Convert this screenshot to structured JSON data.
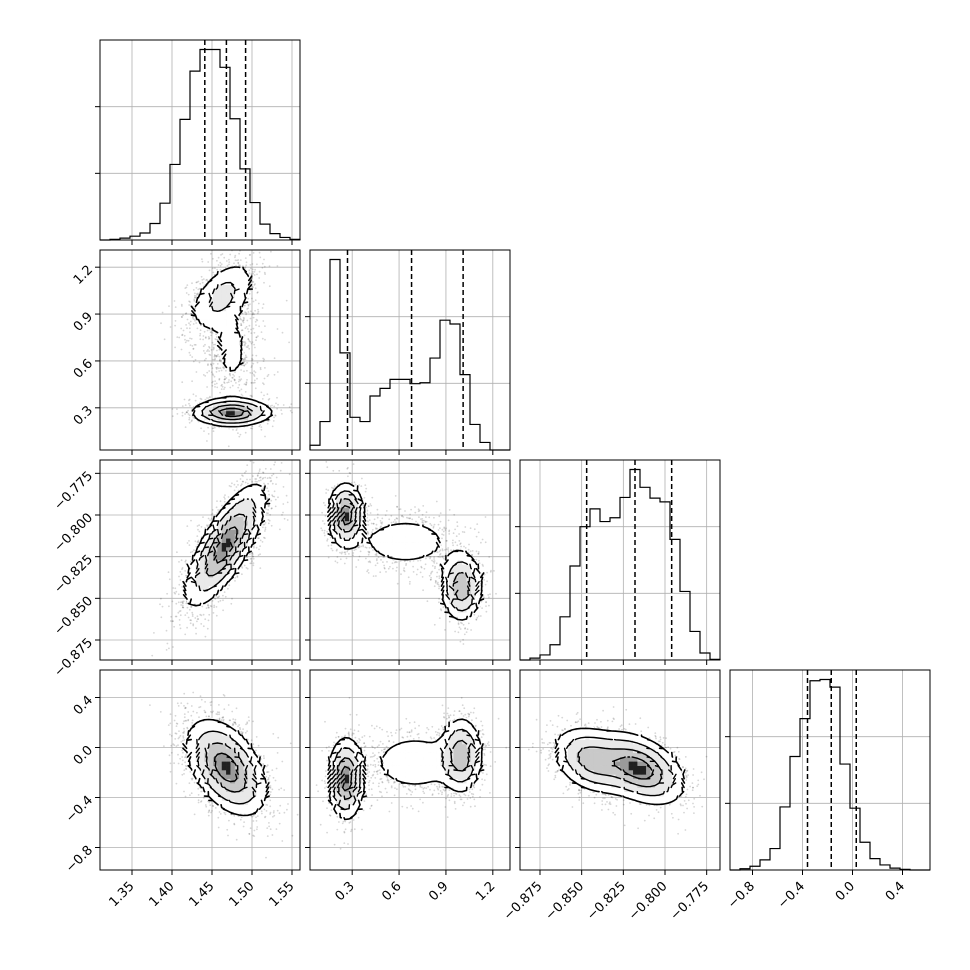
{
  "chart_data": {
    "type": "corner",
    "grid": true,
    "params": [
      {
        "id": "p0",
        "range": [
          1.31,
          1.56
        ],
        "ticks": [
          "1.35",
          "1.40",
          "1.45",
          "1.50",
          "1.55"
        ],
        "tick_values": [
          1.35,
          1.4,
          1.45,
          1.5,
          1.55
        ],
        "quantiles": [
          1.441,
          1.468,
          1.492
        ]
      },
      {
        "id": "p1",
        "range": [
          0.03,
          1.31
        ],
        "ticks": [
          "0.3",
          "0.6",
          "0.9",
          "1.2"
        ],
        "tick_values": [
          0.3,
          0.6,
          0.9,
          1.2
        ],
        "quantiles": [
          0.27,
          0.68,
          1.01
        ]
      },
      {
        "id": "p2",
        "range": [
          -0.887,
          -0.767
        ],
        "ticks": [
          "-0.875",
          "-0.850",
          "-0.825",
          "-0.800",
          "-0.775"
        ],
        "tick_labels": [
          "−0.875",
          "−0.850",
          "−0.825",
          "−0.800",
          "−0.775"
        ],
        "tick_values": [
          -0.875,
          -0.85,
          -0.825,
          -0.8,
          -0.775
        ],
        "quantiles": [
          -0.847,
          -0.818,
          -0.796
        ]
      },
      {
        "id": "p3",
        "range": [
          -0.98,
          0.62
        ],
        "ticks": [
          "-0.8",
          "-0.4",
          "0.0",
          "0.4"
        ],
        "tick_labels": [
          "−0.8",
          "−0.4",
          "0.0",
          "0.4"
        ],
        "tick_values": [
          -0.8,
          -0.4,
          0.0,
          0.4
        ],
        "quantiles": [
          -0.36,
          -0.17,
          0.03
        ]
      }
    ],
    "histograms": [
      {
        "param": "p0",
        "counts": [
          0,
          1,
          3,
          6,
          11,
          26,
          58,
          119,
          190,
          266,
          300,
          300,
          272,
          191,
          112,
          59,
          25,
          10,
          4,
          1
        ]
      },
      {
        "param": "p1",
        "counts": [
          10,
          60,
          402,
          205,
          69,
          60,
          114,
          130,
          149,
          149,
          140,
          142,
          194,
          274,
          266,
          159,
          54,
          16,
          0,
          0
        ]
      },
      {
        "param": "p2",
        "counts": [
          0,
          3,
          8,
          24,
          68,
          148,
          210,
          238,
          218,
          224,
          256,
          300,
          272,
          255,
          249,
          190,
          108,
          45,
          11,
          1
        ]
      },
      {
        "param": "p3",
        "counts": [
          0,
          2,
          6,
          16,
          34,
          100,
          180,
          240,
          300,
          302,
          290,
          168,
          98,
          44,
          18,
          8,
          3,
          1,
          0,
          0
        ]
      }
    ],
    "pairs": [
      {
        "x": "p0",
        "y": "p1",
        "modes": [
          {
            "cx": 1.462,
            "cy": 1.02,
            "sx": 0.024,
            "sy": 0.13,
            "rho": 0.55,
            "w": 0.34
          },
          {
            "cx": 1.475,
            "cy": 0.67,
            "sx": 0.02,
            "sy": 0.22,
            "rho": 0.0,
            "w": 0.28
          },
          {
            "cx": 1.475,
            "cy": 0.27,
            "sx": 0.026,
            "sy": 0.045,
            "rho": 0.0,
            "w": 0.38
          }
        ]
      },
      {
        "x": "p0",
        "y": "p2",
        "modes": [
          {
            "cx": 1.467,
            "cy": -0.818,
            "sx": 0.026,
            "sy": 0.019,
            "rho": 0.75,
            "w": 1.0
          }
        ]
      },
      {
        "x": "p1",
        "y": "p2",
        "modes": [
          {
            "cx": 0.26,
            "cy": -0.8,
            "sx": 0.06,
            "sy": 0.01,
            "rho": 0.0,
            "w": 0.34
          },
          {
            "cx": 0.64,
            "cy": -0.816,
            "sx": 0.18,
            "sy": 0.009,
            "rho": 0.0,
            "w": 0.3
          },
          {
            "cx": 1.0,
            "cy": -0.843,
            "sx": 0.07,
            "sy": 0.011,
            "rho": 0.0,
            "w": 0.36
          }
        ]
      },
      {
        "x": "p0",
        "y": "p3",
        "modes": [
          {
            "cx": 1.468,
            "cy": -0.16,
            "sx": 0.026,
            "sy": 0.2,
            "rho": -0.45,
            "w": 1.0
          }
        ]
      },
      {
        "x": "p1",
        "y": "p3",
        "modes": [
          {
            "cx": 0.26,
            "cy": -0.25,
            "sx": 0.06,
            "sy": 0.17,
            "rho": 0.0,
            "w": 0.38
          },
          {
            "cx": 0.7,
            "cy": -0.12,
            "sx": 0.17,
            "sy": 0.14,
            "rho": 0.0,
            "w": 0.3
          },
          {
            "cx": 1.0,
            "cy": -0.06,
            "sx": 0.07,
            "sy": 0.16,
            "rho": 0.0,
            "w": 0.32
          }
        ]
      },
      {
        "x": "p2",
        "y": "p3",
        "modes": [
          {
            "cx": -0.845,
            "cy": -0.1,
            "sx": 0.012,
            "sy": 0.14,
            "rho": -0.3,
            "w": 0.38
          },
          {
            "cx": -0.815,
            "cy": -0.17,
            "sx": 0.014,
            "sy": 0.15,
            "rho": -0.4,
            "w": 0.62
          }
        ]
      }
    ]
  }
}
